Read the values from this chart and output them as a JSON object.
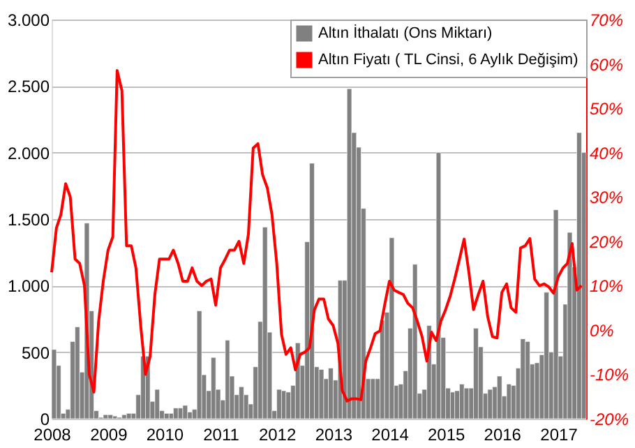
{
  "chart_data": {
    "type": "bar",
    "x": [
      "2008-01",
      "2008-02",
      "2008-03",
      "2008-04",
      "2008-05",
      "2008-06",
      "2008-07",
      "2008-08",
      "2008-09",
      "2008-10",
      "2008-11",
      "2008-12",
      "2009-01",
      "2009-02",
      "2009-03",
      "2009-04",
      "2009-05",
      "2009-06",
      "2009-07",
      "2009-08",
      "2009-09",
      "2009-10",
      "2009-11",
      "2009-12",
      "2010-01",
      "2010-02",
      "2010-03",
      "2010-04",
      "2010-05",
      "2010-06",
      "2010-07",
      "2010-08",
      "2010-09",
      "2010-10",
      "2010-11",
      "2010-12",
      "2011-01",
      "2011-02",
      "2011-03",
      "2011-04",
      "2011-05",
      "2011-06",
      "2011-07",
      "2011-08",
      "2011-09",
      "2011-10",
      "2011-11",
      "2011-12",
      "2012-01",
      "2012-02",
      "2012-03",
      "2012-04",
      "2012-05",
      "2012-06",
      "2012-07",
      "2012-08",
      "2012-09",
      "2012-10",
      "2012-11",
      "2012-12",
      "2013-01",
      "2013-02",
      "2013-03",
      "2013-04",
      "2013-05",
      "2013-06",
      "2013-07",
      "2013-08",
      "2013-09",
      "2013-10",
      "2013-11",
      "2013-12",
      "2014-01",
      "2014-02",
      "2014-03",
      "2014-04",
      "2014-05",
      "2014-06",
      "2014-07",
      "2014-08",
      "2014-09",
      "2014-10",
      "2014-11",
      "2014-12",
      "2015-01",
      "2015-02",
      "2015-03",
      "2015-04",
      "2015-05",
      "2015-06",
      "2015-07",
      "2015-08",
      "2015-09",
      "2015-10",
      "2015-11",
      "2015-12",
      "2016-01",
      "2016-02",
      "2016-03",
      "2016-04",
      "2016-05",
      "2016-06",
      "2016-07",
      "2016-08",
      "2016-09",
      "2016-10",
      "2016-11",
      "2016-12",
      "2017-01",
      "2017-02",
      "2017-03",
      "2017-04",
      "2017-05",
      "2017-06"
    ],
    "series": [
      {
        "name": "Altın İthalatı  (Ons Miktarı)",
        "color": "#808080",
        "values": [
          520,
          400,
          40,
          70,
          580,
          690,
          350,
          1470,
          810,
          60,
          10,
          30,
          30,
          20,
          10,
          30,
          40,
          40,
          180,
          470,
          470,
          130,
          220,
          60,
          40,
          40,
          80,
          80,
          100,
          50,
          70,
          810,
          330,
          210,
          460,
          220,
          140,
          590,
          320,
          180,
          240,
          180,
          110,
          390,
          730,
          1440,
          650,
          60,
          220,
          210,
          200,
          250,
          570,
          400,
          1330,
          1920,
          390,
          370,
          300,
          380,
          290,
          1040,
          1040,
          2480,
          2150,
          2040,
          1580,
          300,
          300,
          300,
          740,
          800,
          1360,
          250,
          260,
          360,
          680,
          1160,
          190,
          220,
          700,
          410,
          2000,
          610,
          230,
          200,
          210,
          260,
          230,
          230,
          680,
          540,
          190,
          220,
          240,
          320,
          170,
          260,
          250,
          380,
          600,
          580,
          410,
          420,
          480,
          950,
          500,
          1570,
          470,
          860,
          1400,
          1140,
          2150,
          2000
        ]
      },
      {
        "name": "Altın Fiyatı ( TL Cinsi, 6 Aylık Değişim)",
        "type": "line",
        "axis": "y2",
        "color": "#ff0000",
        "values": [
          13,
          23,
          26,
          33,
          30,
          16,
          15,
          10,
          -10,
          -14,
          2,
          11,
          18,
          21,
          58.5,
          54,
          19,
          19,
          14,
          1,
          -10,
          -6,
          8,
          16,
          16,
          16,
          18,
          15,
          11,
          11,
          14,
          11,
          10,
          11,
          11.5,
          5.6,
          14,
          16,
          18,
          18,
          20,
          15,
          21.6,
          41,
          42,
          35,
          32,
          26,
          15,
          -1,
          -5.5,
          -4,
          -9,
          -5.5,
          -5,
          -4,
          4.5,
          7,
          7,
          2.5,
          1,
          -3,
          -13.6,
          -16,
          -15.5,
          -15.5,
          -15.7,
          -7,
          -4,
          -0.8,
          -0.2,
          5.6,
          11,
          9,
          8.5,
          8,
          6,
          5,
          2,
          -1.5,
          -7,
          -0.5,
          -2.4,
          2,
          4.6,
          7.8,
          11.5,
          16,
          20.5,
          13,
          4.6,
          8,
          11,
          3,
          -1.5,
          -1.8,
          8.5,
          10.4,
          5,
          4,
          18.5,
          19,
          20.6,
          11.5,
          10,
          10.4,
          9.7,
          8.3,
          12,
          14,
          15,
          19.5,
          9,
          10
        ]
      }
    ],
    "xlim": [
      "2008-01",
      "2017-07"
    ],
    "xticks": [
      "2008",
      "2009",
      "2010",
      "2011",
      "2012",
      "2013",
      "2014",
      "2015",
      "2016",
      "2017"
    ],
    "ylim": [
      0,
      3000
    ],
    "yticks": [
      0,
      500,
      {
        "value": 1000,
        "label": "1.000"
      },
      {
        "value": 1500,
        "label": "1.500"
      },
      {
        "value": 2000,
        "label": "2.000"
      },
      {
        "value": 2500,
        "label": "2.500"
      },
      {
        "value": 3000,
        "label": "3.000"
      }
    ],
    "y2lim": [
      -20,
      70
    ],
    "y2ticks": [
      {
        "value": -20,
        "label": "-20%"
      },
      {
        "value": -10,
        "label": "-10%"
      },
      {
        "value": 0,
        "label": "0%"
      },
      {
        "value": 10,
        "label": "10%"
      },
      {
        "value": 20,
        "label": "20%"
      },
      {
        "value": 30,
        "label": "30%"
      },
      {
        "value": 40,
        "label": "40%"
      },
      {
        "value": 50,
        "label": "50%"
      },
      {
        "value": 60,
        "label": "60%"
      },
      {
        "value": 70,
        "label": "70%"
      }
    ],
    "grid": "y",
    "legend": "top right"
  }
}
